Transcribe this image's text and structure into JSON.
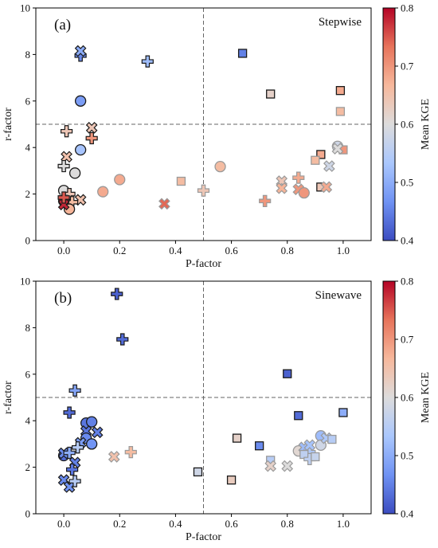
{
  "colors": {
    "cmap": [
      "#3b4cc0",
      "#6f92f3",
      "#aac7fd",
      "#dddcdc",
      "#f7b89c",
      "#e7745b",
      "#b40426"
    ],
    "guide_line": "#666666",
    "axis": "#000000"
  },
  "colorbar_ticks": [
    "0.4",
    "0.5",
    "0.6",
    "0.7",
    "0.8"
  ],
  "chart_data": [
    {
      "type": "scatter",
      "panel_label": "(a)",
      "title": "Stepwise",
      "xlabel": "P-factor",
      "ylabel": "r-factor",
      "xlim": [
        -0.1,
        1.1
      ],
      "ylim": [
        0,
        10
      ],
      "xticks": [
        "0.0",
        "0.2",
        "0.4",
        "0.6",
        "0.8",
        "1.0"
      ],
      "yticks": [
        "0",
        "2",
        "4",
        "6",
        "8",
        "10"
      ],
      "grid": false,
      "reference_lines": {
        "x": 0.5,
        "y": 5
      },
      "colorbar": {
        "label": "Mean KGE",
        "range": [
          0.4,
          0.8
        ]
      },
      "points": [
        {
          "m": "plus",
          "x": 0.06,
          "y": 7.95,
          "c": 0.46,
          "edge": "dark"
        },
        {
          "m": "x",
          "x": 0.06,
          "y": 8.15,
          "c": 0.5,
          "edge": "dark"
        },
        {
          "m": "plus",
          "x": 0.3,
          "y": 7.7,
          "c": 0.52,
          "edge": "dark"
        },
        {
          "m": "circle",
          "x": 0.06,
          "y": 6.0,
          "c": 0.48,
          "edge": "dark"
        },
        {
          "m": "square",
          "x": 0.64,
          "y": 8.05,
          "c": 0.45,
          "edge": "dark"
        },
        {
          "m": "square",
          "x": 0.74,
          "y": 6.3,
          "c": 0.62,
          "edge": "dark"
        },
        {
          "m": "square",
          "x": 0.99,
          "y": 6.45,
          "c": 0.68,
          "edge": "dark"
        },
        {
          "m": "square",
          "x": 0.99,
          "y": 5.55,
          "c": 0.66,
          "edge": "grey"
        },
        {
          "m": "plus",
          "x": 0.01,
          "y": 4.7,
          "c": 0.64,
          "edge": "dark"
        },
        {
          "m": "x",
          "x": 0.1,
          "y": 4.85,
          "c": 0.64,
          "edge": "dark"
        },
        {
          "m": "plus",
          "x": 0.1,
          "y": 4.4,
          "c": 0.7,
          "edge": "dark"
        },
        {
          "m": "circle",
          "x": 0.06,
          "y": 3.9,
          "c": 0.53,
          "edge": "dark"
        },
        {
          "m": "x",
          "x": 0.01,
          "y": 3.6,
          "c": 0.65,
          "edge": "dark"
        },
        {
          "m": "plus",
          "x": 0.0,
          "y": 3.2,
          "c": 0.6,
          "edge": "dark"
        },
        {
          "m": "circle",
          "x": 0.04,
          "y": 2.9,
          "c": 0.6,
          "edge": "dark"
        },
        {
          "m": "circle",
          "x": 0.0,
          "y": 2.15,
          "c": 0.6,
          "edge": "dark"
        },
        {
          "m": "plus",
          "x": 0.02,
          "y": 2.0,
          "c": 0.64,
          "edge": "dark"
        },
        {
          "m": "x",
          "x": 0.06,
          "y": 1.75,
          "c": 0.65,
          "edge": "dark"
        },
        {
          "m": "plus",
          "x": 0.03,
          "y": 1.65,
          "c": 0.66,
          "edge": "dark"
        },
        {
          "m": "square",
          "x": 0.0,
          "y": 1.8,
          "c": 0.72,
          "edge": "grey"
        },
        {
          "m": "circle",
          "x": 0.0,
          "y": 1.7,
          "c": 0.76,
          "edge": "dark"
        },
        {
          "m": "circle",
          "x": 0.02,
          "y": 1.35,
          "c": 0.67,
          "edge": "dark"
        },
        {
          "m": "x",
          "x": 0.0,
          "y": 1.55,
          "c": 0.78,
          "edge": "dark"
        },
        {
          "m": "plus",
          "x": 0.0,
          "y": 1.85,
          "c": 0.75,
          "edge": "dark"
        },
        {
          "m": "circle",
          "x": 0.14,
          "y": 2.1,
          "c": 0.68,
          "edge": "grey"
        },
        {
          "m": "circle",
          "x": 0.2,
          "y": 2.62,
          "c": 0.68,
          "edge": "grey"
        },
        {
          "m": "x",
          "x": 0.36,
          "y": 1.58,
          "c": 0.74,
          "edge": "grey"
        },
        {
          "m": "square",
          "x": 0.42,
          "y": 2.55,
          "c": 0.66,
          "edge": "grey"
        },
        {
          "m": "plus",
          "x": 0.5,
          "y": 2.15,
          "c": 0.64,
          "edge": "grey"
        },
        {
          "m": "circle",
          "x": 0.56,
          "y": 3.18,
          "c": 0.66,
          "edge": "grey"
        },
        {
          "m": "plus",
          "x": 0.72,
          "y": 1.7,
          "c": 0.7,
          "edge": "grey"
        },
        {
          "m": "x",
          "x": 0.78,
          "y": 2.55,
          "c": 0.64,
          "edge": "grey"
        },
        {
          "m": "x",
          "x": 0.78,
          "y": 2.25,
          "c": 0.67,
          "edge": "grey"
        },
        {
          "m": "plus",
          "x": 0.84,
          "y": 2.7,
          "c": 0.68,
          "edge": "grey"
        },
        {
          "m": "x",
          "x": 0.84,
          "y": 2.2,
          "c": 0.7,
          "edge": "grey"
        },
        {
          "m": "circle",
          "x": 0.86,
          "y": 2.05,
          "c": 0.7,
          "edge": "grey"
        },
        {
          "m": "square",
          "x": 0.92,
          "y": 3.7,
          "c": 0.68,
          "edge": "dark"
        },
        {
          "m": "square",
          "x": 0.92,
          "y": 2.3,
          "c": 0.64,
          "edge": "dark"
        },
        {
          "m": "square",
          "x": 0.9,
          "y": 3.45,
          "c": 0.66,
          "edge": "grey"
        },
        {
          "m": "x",
          "x": 0.94,
          "y": 2.3,
          "c": 0.68,
          "edge": "grey"
        },
        {
          "m": "x",
          "x": 0.95,
          "y": 3.2,
          "c": 0.58,
          "edge": "grey"
        },
        {
          "m": "circle",
          "x": 0.98,
          "y": 4.05,
          "c": 0.58,
          "edge": "grey"
        },
        {
          "m": "square",
          "x": 1.0,
          "y": 3.9,
          "c": 0.7,
          "edge": "grey"
        },
        {
          "m": "x",
          "x": 0.98,
          "y": 3.95,
          "c": 0.6,
          "edge": "grey"
        }
      ]
    },
    {
      "type": "scatter",
      "panel_label": "(b)",
      "title": "Sinewave",
      "xlabel": "P-factor",
      "ylabel": "r-factor",
      "xlim": [
        -0.1,
        1.1
      ],
      "ylim": [
        0,
        10
      ],
      "xticks": [
        "0.0",
        "0.2",
        "0.4",
        "0.6",
        "0.8",
        "1.0"
      ],
      "yticks": [
        "0",
        "2",
        "4",
        "6",
        "8",
        "10"
      ],
      "grid": false,
      "reference_lines": {
        "x": 0.5,
        "y": 5
      },
      "colorbar": {
        "label": "Mean KGE",
        "range": [
          0.4,
          0.8
        ]
      },
      "points": [
        {
          "m": "plus",
          "x": 0.19,
          "y": 9.45,
          "c": 0.42,
          "edge": "dark"
        },
        {
          "m": "plus",
          "x": 0.21,
          "y": 7.5,
          "c": 0.43,
          "edge": "dark"
        },
        {
          "m": "plus",
          "x": 0.04,
          "y": 5.3,
          "c": 0.49,
          "edge": "dark"
        },
        {
          "m": "square",
          "x": 0.8,
          "y": 6.02,
          "c": 0.42,
          "edge": "dark"
        },
        {
          "m": "square",
          "x": 0.84,
          "y": 4.22,
          "c": 0.43,
          "edge": "dark"
        },
        {
          "m": "square",
          "x": 1.0,
          "y": 4.35,
          "c": 0.5,
          "edge": "dark"
        },
        {
          "m": "plus",
          "x": 0.02,
          "y": 4.35,
          "c": 0.43,
          "edge": "dark"
        },
        {
          "m": "circle",
          "x": 0.08,
          "y": 3.9,
          "c": 0.44,
          "edge": "dark"
        },
        {
          "m": "circle",
          "x": 0.1,
          "y": 3.95,
          "c": 0.45,
          "edge": "dark"
        },
        {
          "m": "x",
          "x": 0.08,
          "y": 3.55,
          "c": 0.44,
          "edge": "dark"
        },
        {
          "m": "x",
          "x": 0.12,
          "y": 3.5,
          "c": 0.45,
          "edge": "dark"
        },
        {
          "m": "circle",
          "x": 0.08,
          "y": 3.25,
          "c": 0.46,
          "edge": "dark"
        },
        {
          "m": "circle",
          "x": 0.1,
          "y": 3.0,
          "c": 0.47,
          "edge": "dark"
        },
        {
          "m": "x",
          "x": 0.06,
          "y": 3.05,
          "c": 0.48,
          "edge": "dark"
        },
        {
          "m": "plus",
          "x": 0.05,
          "y": 2.85,
          "c": 0.55,
          "edge": "dark"
        },
        {
          "m": "circle",
          "x": 0.0,
          "y": 2.5,
          "c": 0.43,
          "edge": "dark"
        },
        {
          "m": "x",
          "x": 0.0,
          "y": 2.6,
          "c": 0.46,
          "edge": "dark"
        },
        {
          "m": "plus",
          "x": 0.02,
          "y": 2.62,
          "c": 0.5,
          "edge": "dark"
        },
        {
          "m": "x",
          "x": 0.04,
          "y": 2.2,
          "c": 0.45,
          "edge": "dark"
        },
        {
          "m": "plus",
          "x": 0.03,
          "y": 1.9,
          "c": 0.44,
          "edge": "dark"
        },
        {
          "m": "x",
          "x": 0.0,
          "y": 1.45,
          "c": 0.46,
          "edge": "dark"
        },
        {
          "m": "x",
          "x": 0.02,
          "y": 1.15,
          "c": 0.47,
          "edge": "dark"
        },
        {
          "m": "plus",
          "x": 0.04,
          "y": 1.4,
          "c": 0.55,
          "edge": "dark"
        },
        {
          "m": "x",
          "x": 0.18,
          "y": 2.45,
          "c": 0.65,
          "edge": "grey"
        },
        {
          "m": "plus",
          "x": 0.24,
          "y": 2.65,
          "c": 0.66,
          "edge": "grey"
        },
        {
          "m": "square",
          "x": 0.48,
          "y": 1.8,
          "c": 0.58,
          "edge": "dark"
        },
        {
          "m": "square",
          "x": 0.6,
          "y": 1.45,
          "c": 0.63,
          "edge": "dark"
        },
        {
          "m": "square",
          "x": 0.62,
          "y": 3.25,
          "c": 0.62,
          "edge": "dark"
        },
        {
          "m": "square",
          "x": 0.7,
          "y": 2.92,
          "c": 0.46,
          "edge": "dark"
        },
        {
          "m": "square",
          "x": 0.74,
          "y": 2.3,
          "c": 0.55,
          "edge": "grey"
        },
        {
          "m": "x",
          "x": 0.74,
          "y": 2.05,
          "c": 0.62,
          "edge": "grey"
        },
        {
          "m": "x",
          "x": 0.8,
          "y": 2.05,
          "c": 0.6,
          "edge": "grey"
        },
        {
          "m": "circle",
          "x": 0.84,
          "y": 2.7,
          "c": 0.61,
          "edge": "grey"
        },
        {
          "m": "x",
          "x": 0.86,
          "y": 2.85,
          "c": 0.52,
          "edge": "grey"
        },
        {
          "m": "plus",
          "x": 0.88,
          "y": 2.65,
          "c": 0.54,
          "edge": "grey"
        },
        {
          "m": "square",
          "x": 0.86,
          "y": 2.55,
          "c": 0.56,
          "edge": "grey"
        },
        {
          "m": "x",
          "x": 0.88,
          "y": 2.95,
          "c": 0.53,
          "edge": "grey"
        },
        {
          "m": "plus",
          "x": 0.88,
          "y": 2.35,
          "c": 0.56,
          "edge": "grey"
        },
        {
          "m": "square",
          "x": 0.9,
          "y": 2.45,
          "c": 0.57,
          "edge": "grey"
        },
        {
          "m": "circle",
          "x": 0.92,
          "y": 3.35,
          "c": 0.52,
          "edge": "grey"
        },
        {
          "m": "circle",
          "x": 0.92,
          "y": 2.95,
          "c": 0.58,
          "edge": "grey"
        },
        {
          "m": "x",
          "x": 0.94,
          "y": 3.25,
          "c": 0.54,
          "edge": "grey"
        },
        {
          "m": "square",
          "x": 0.96,
          "y": 3.2,
          "c": 0.55,
          "edge": "grey"
        }
      ]
    }
  ]
}
